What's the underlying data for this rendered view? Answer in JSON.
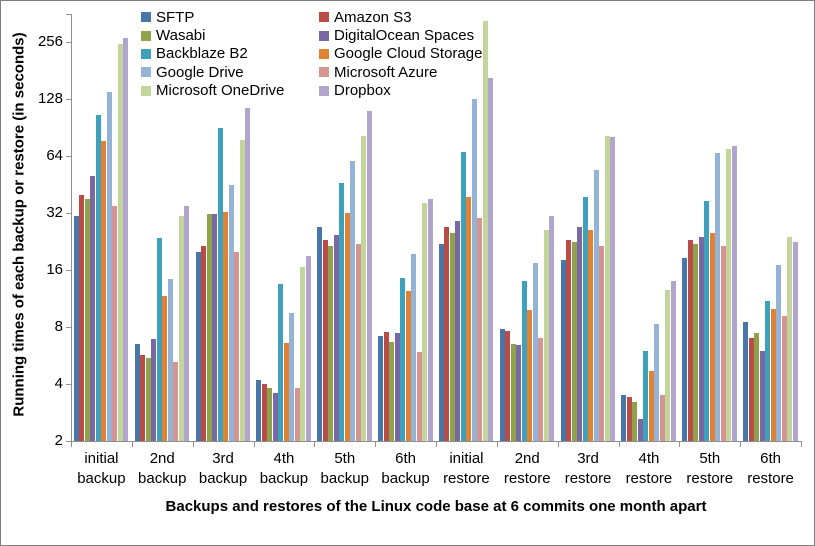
{
  "figure": {
    "y_axis_title": "Running times of each backup or restore (in seconds)",
    "x_axis_title": "Backups and restores of the Linux code base at 6 commits one month apart"
  },
  "chart_data": {
    "type": "bar",
    "title": "",
    "xlabel": "Backups and restores of the Linux code base at 6 commits one month apart",
    "ylabel": "Running times of each backup or restore (in seconds)",
    "y_scale": "log2",
    "y_ticks": [
      2,
      4,
      8,
      16,
      32,
      64,
      128,
      256
    ],
    "ylim": [
      2,
      300
    ],
    "grid": false,
    "legend_position": "top-left two-column overlay",
    "axis_color": "#8f8f8f",
    "categories": [
      "initial backup",
      "2nd backup",
      "3rd backup",
      "4th backup",
      "5th backup",
      "6th backup",
      "initial restore",
      "2nd restore",
      "3rd restore",
      "4th restore",
      "5th restore",
      "6th restore"
    ],
    "series": [
      {
        "name": "SFTP",
        "color": "#4876A9",
        "values": [
          31,
          6.5,
          20,
          4.2,
          27,
          7.2,
          22,
          7.8,
          18,
          3.5,
          18.5,
          8.5
        ]
      },
      {
        "name": "Amazon S3",
        "color": "#BA4C47",
        "values": [
          40,
          5.7,
          21.5,
          4.0,
          23,
          7.5,
          27,
          7.6,
          23,
          3.4,
          23,
          7.0
        ]
      },
      {
        "name": "Wasabi",
        "color": "#8FA14B",
        "values": [
          38,
          5.5,
          31.5,
          3.8,
          21.5,
          6.7,
          25,
          6.5,
          22.5,
          3.2,
          22,
          7.4
        ]
      },
      {
        "name": "DigitalOcean Spaces",
        "color": "#7A68A5",
        "values": [
          50,
          6.9,
          31.5,
          3.6,
          24.5,
          7.4,
          29,
          6.4,
          27,
          2.6,
          24,
          6.0
        ]
      },
      {
        "name": "Backblaze B2",
        "color": "#3FA0BC",
        "values": [
          105,
          23.5,
          90,
          13.5,
          46,
          14.5,
          67,
          14,
          39,
          6.0,
          37,
          11
        ]
      },
      {
        "name": "Google Cloud Storage",
        "color": "#E08234",
        "values": [
          77,
          11.6,
          32.5,
          6.6,
          32,
          12.4,
          39,
          9.8,
          26,
          4.7,
          25,
          10
        ]
      },
      {
        "name": "Google Drive",
        "color": "#95B3D7",
        "values": [
          140,
          14.4,
          45,
          9.5,
          60,
          19.5,
          128,
          17.4,
          54,
          8.3,
          66,
          17
        ]
      },
      {
        "name": "Microsoft Azure",
        "color": "#D49492",
        "values": [
          35,
          5.2,
          20,
          3.8,
          22,
          5.9,
          30,
          7.0,
          21.5,
          3.5,
          21.5,
          9.2
        ]
      },
      {
        "name": "Microsoft OneDrive",
        "color": "#C2D69B",
        "values": [
          250,
          31,
          78,
          16.5,
          82,
          36,
          330,
          26,
          82,
          12.5,
          70,
          24
        ]
      },
      {
        "name": "Dropbox",
        "color": "#B2A5CD",
        "values": [
          270,
          35,
          115,
          19,
          110,
          38,
          165,
          31,
          81,
          14,
          72,
          22.5
        ]
      }
    ]
  }
}
